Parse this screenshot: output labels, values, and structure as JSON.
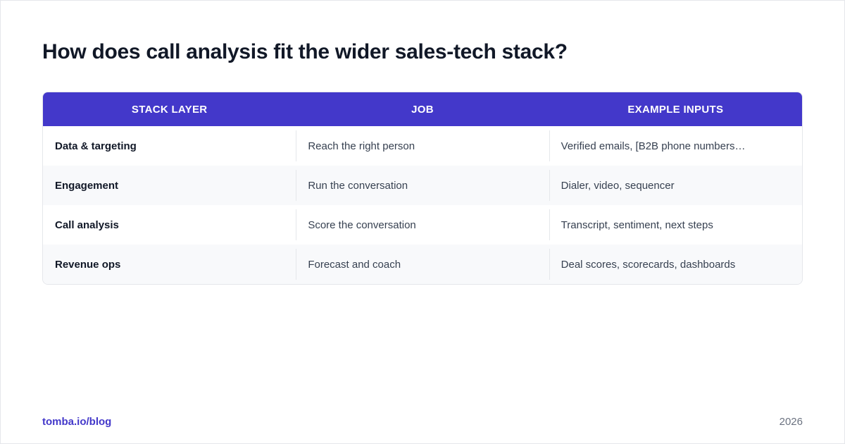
{
  "title": "How does call analysis fit the wider sales-tech stack?",
  "table": {
    "headers": [
      "STACK LAYER",
      "JOB",
      "EXAMPLE INPUTS"
    ],
    "rows": [
      {
        "layer": "Data & targeting",
        "job": "Reach the right person",
        "inputs": "Verified emails, [B2B phone numbers…"
      },
      {
        "layer": "Engagement",
        "job": "Run the conversation",
        "inputs": "Dialer, video, sequencer"
      },
      {
        "layer": "Call analysis",
        "job": "Score the conversation",
        "inputs": "Transcript, sentiment, next steps"
      },
      {
        "layer": "Revenue ops",
        "job": "Forecast and coach",
        "inputs": "Deal scores, scorecards, dashboards"
      }
    ]
  },
  "footer": {
    "link": "tomba.io/blog",
    "year": "2026"
  },
  "colors": {
    "header_bg": "#4338ca",
    "title": "#111827",
    "link": "#4338ca",
    "row_alt_bg": "#f8f9fb"
  }
}
